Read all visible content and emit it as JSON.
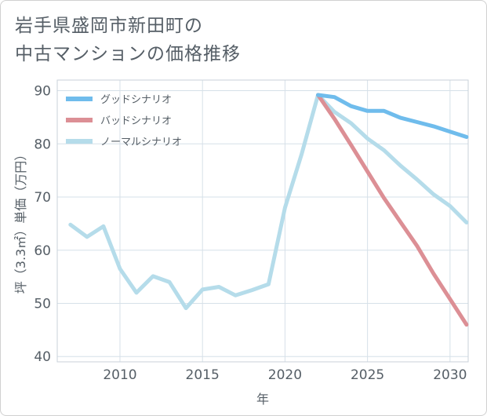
{
  "title_lines": [
    "岩手県盛岡市新田町の",
    "中古マンションの価格推移"
  ],
  "chart_data": {
    "type": "line",
    "title": "岩手県盛岡市新田町の中古マンションの価格推移",
    "xlabel": "年",
    "ylabel": "坪（3.3㎡）単価（万円）",
    "xlim": [
      2006.2,
      2031.1
    ],
    "ylim": [
      39,
      92
    ],
    "xticks": [
      2010,
      2015,
      2020,
      2025,
      2030
    ],
    "yticks": [
      40,
      50,
      60,
      70,
      80,
      90
    ],
    "grid": true,
    "legend_position": "top-left",
    "series": [
      {
        "name": "グッドシナリオ",
        "color": "#6fbcec",
        "x": [
          2022,
          2023,
          2024,
          2025,
          2026,
          2027,
          2028,
          2029,
          2030,
          2031
        ],
        "y": [
          89.2,
          88.8,
          87.1,
          86.2,
          86.2,
          84.9,
          84.1,
          83.3,
          82.3,
          81.3
        ]
      },
      {
        "name": "バッドシナリオ",
        "color": "#dc8f95",
        "x": [
          2022,
          2023,
          2024,
          2025,
          2026,
          2027,
          2028,
          2029,
          2030,
          2031
        ],
        "y": [
          89.2,
          84.7,
          79.8,
          74.8,
          69.8,
          65.3,
          60.8,
          55.6,
          50.8,
          46.0
        ]
      },
      {
        "name": "ノーマルシナリオ",
        "color": "#b5dcea",
        "x": [
          2007,
          2008,
          2009,
          2010,
          2011,
          2012,
          2013,
          2014,
          2015,
          2016,
          2017,
          2018,
          2019,
          2020,
          2021,
          2022,
          2023,
          2024,
          2025,
          2026,
          2027,
          2028,
          2029,
          2030,
          2031
        ],
        "y": [
          64.8,
          62.5,
          64.5,
          56.5,
          52.0,
          55.1,
          54.0,
          49.1,
          52.6,
          53.1,
          51.5,
          52.5,
          53.6,
          68.0,
          78.0,
          89.2,
          86.0,
          83.9,
          81.0,
          78.8,
          75.9,
          73.3,
          70.5,
          68.3,
          65.2
        ]
      }
    ]
  }
}
